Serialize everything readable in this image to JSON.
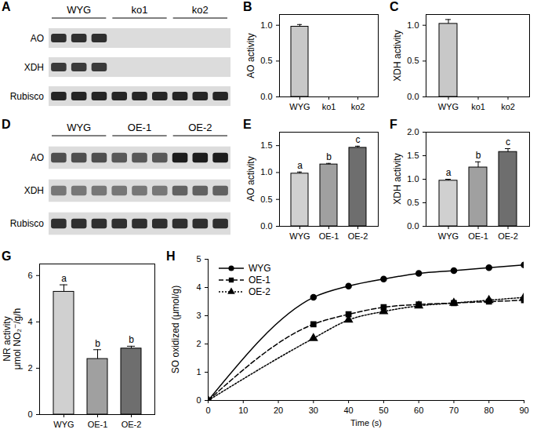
{
  "chart_data": [
    {
      "type": "blot",
      "title": "A",
      "lanes": [
        "WYG",
        "WYG",
        "WYG",
        "ko1",
        "ko1",
        "ko1",
        "ko2",
        "ko2",
        "ko2"
      ],
      "rows": [
        {
          "name": "AO",
          "intensity": [
            0.85,
            0.85,
            0.85,
            0,
            0,
            0,
            0,
            0,
            0
          ]
        },
        {
          "name": "XDH",
          "intensity": [
            0.8,
            0.8,
            0.8,
            0,
            0,
            0,
            0,
            0,
            0
          ]
        },
        {
          "name": "Rubisco",
          "intensity": [
            0.9,
            0.9,
            0.9,
            0.9,
            0.9,
            0.9,
            0.9,
            0.9,
            0.9
          ]
        }
      ]
    },
    {
      "type": "bar",
      "title": "B",
      "y_label": "AO activity",
      "categories": [
        "WYG",
        "ko1",
        "ko2"
      ],
      "values": [
        0.98,
        0,
        0
      ],
      "errors": [
        0.03,
        0,
        0
      ],
      "color": "#c8c8c8",
      "ylim": [
        0,
        1.15
      ],
      "yticks": [
        {
          "value": 0,
          "label": "0.0"
        },
        {
          "value": 0.5,
          "label": "0.5"
        },
        {
          "value": 1,
          "label": "1.0"
        }
      ]
    },
    {
      "type": "bar",
      "title": "C",
      "y_label": "XDH activity",
      "categories": [
        "WYG",
        "ko1",
        "ko2"
      ],
      "values": [
        1.02,
        0,
        0
      ],
      "errors": [
        0.06,
        0,
        0
      ],
      "color": "#c8c8c8",
      "ylim": [
        0,
        1.15
      ],
      "yticks": [
        {
          "value": 0,
          "label": "0.0"
        },
        {
          "value": 0.5,
          "label": "0.5"
        },
        {
          "value": 1,
          "label": "1.0"
        }
      ]
    },
    {
      "type": "blot",
      "title": "D",
      "lanes": [
        "WYG",
        "WYG",
        "WYG",
        "OE-1",
        "OE-1",
        "OE-1",
        "OE-2",
        "OE-2",
        "OE-2"
      ],
      "rows": [
        {
          "name": "AO",
          "intensity": [
            0.7,
            0.7,
            0.7,
            0.65,
            0.65,
            0.65,
            0.95,
            0.95,
            0.95
          ]
        },
        {
          "name": "XDH",
          "intensity": [
            0.5,
            0.5,
            0.5,
            0.5,
            0.5,
            0.5,
            0.6,
            0.6,
            0.6
          ]
        },
        {
          "name": "Rubisco",
          "intensity": [
            0.85,
            0.85,
            0.85,
            0.85,
            0.85,
            0.85,
            0.85,
            0.85,
            0.85
          ]
        }
      ]
    },
    {
      "type": "bar",
      "title": "E",
      "y_label": "AO activity",
      "categories": [
        "WYG",
        "OE-1",
        "OE-2"
      ],
      "values": [
        0.98,
        1.15,
        1.46
      ],
      "errors": [
        0.03,
        0.02,
        0.03
      ],
      "annotations": [
        "a",
        "b",
        "c"
      ],
      "colors": [
        "#d0d0d0",
        "#a0a0a0",
        "#6e6e6e"
      ],
      "ylim": [
        0,
        1.75
      ],
      "yticks": [
        {
          "value": 0,
          "label": "0.0"
        },
        {
          "value": 0.5,
          "label": "0.5"
        },
        {
          "value": 1,
          "label": "1.0"
        },
        {
          "value": 1.5,
          "label": "1.5"
        }
      ]
    },
    {
      "type": "bar",
      "title": "F",
      "y_label": "XDH activity",
      "categories": [
        "WYG",
        "OE-1",
        "OE-2"
      ],
      "values": [
        0.97,
        1.25,
        1.58
      ],
      "errors": [
        0.03,
        0.12,
        0.07
      ],
      "annotations": [
        "a",
        "b",
        "c"
      ],
      "colors": [
        "#d0d0d0",
        "#a0a0a0",
        "#6e6e6e"
      ],
      "ylim": [
        0,
        2
      ],
      "yticks": [
        {
          "value": 0,
          "label": "0.0"
        },
        {
          "value": 0.5,
          "label": "0.5"
        },
        {
          "value": 1,
          "label": "1.0"
        },
        {
          "value": 1.5,
          "label": "1.5"
        },
        {
          "value": 2,
          "label": "2.0"
        }
      ]
    },
    {
      "type": "bar",
      "title": "G",
      "y_label": "NR activity\nμmol NO₂⁻/g/h",
      "categories": [
        "WYG",
        "OE-1",
        "OE-2"
      ],
      "values": [
        5.3,
        2.4,
        2.85
      ],
      "errors": [
        0.3,
        0.4,
        0.1
      ],
      "annotations": [
        "a",
        "b",
        "b"
      ],
      "colors": [
        "#d0d0d0",
        "#a0a0a0",
        "#6e6e6e"
      ],
      "ylim": [
        0,
        6.5
      ],
      "yticks": [
        0,
        2,
        4,
        6
      ]
    },
    {
      "type": "line",
      "title": "H",
      "x_label": "Time (s)",
      "y_label": "SO oxidized (μmol/g)",
      "x": [
        0,
        30,
        40,
        50,
        60,
        70,
        80,
        90
      ],
      "series": [
        {
          "name": "WYG",
          "color": "#000000",
          "marker": "circle",
          "line_style": "solid",
          "values": [
            0,
            3.65,
            4.05,
            4.3,
            4.5,
            4.6,
            4.7,
            4.8
          ]
        },
        {
          "name": "OE-1",
          "color": "#000000",
          "marker": "square",
          "line_style": "dashed",
          "values": [
            0,
            2.7,
            3.05,
            3.3,
            3.4,
            3.45,
            3.5,
            3.55
          ]
        },
        {
          "name": "OE-2",
          "color": "#000000",
          "marker": "triangle",
          "line_style": "dotted",
          "values": [
            0,
            2.2,
            2.85,
            3.15,
            3.35,
            3.45,
            3.55,
            3.65
          ]
        }
      ],
      "xlim": [
        0,
        90
      ],
      "xticks": [
        0,
        10,
        20,
        30,
        40,
        50,
        60,
        70,
        80,
        90
      ],
      "ylim": [
        0,
        5
      ],
      "yticks": [
        0,
        1,
        2,
        3,
        4,
        5
      ],
      "legend": "top-left"
    }
  ]
}
